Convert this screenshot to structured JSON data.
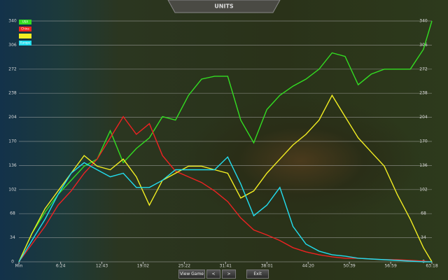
{
  "chart_data": {
    "type": "line",
    "title": "UNITS",
    "x": [
      0,
      2,
      4,
      6,
      8,
      10,
      12,
      14,
      16,
      18,
      20,
      22,
      24,
      26,
      28,
      30,
      32,
      34,
      36,
      38,
      40,
      42,
      44,
      46,
      48,
      50,
      52,
      54,
      56,
      58,
      60,
      62,
      63.3
    ],
    "series": [
      {
        "name": "USA",
        "color": "#33dd22",
        "values": [
          0,
          40,
          70,
          95,
          115,
          135,
          145,
          185,
          140,
          160,
          175,
          205,
          200,
          235,
          258,
          262,
          262,
          200,
          168,
          215,
          235,
          248,
          258,
          272,
          295,
          290,
          250,
          265,
          272,
          272,
          272,
          300,
          340
        ]
      },
      {
        "name": "China",
        "color": "#ee2222",
        "values": [
          0,
          25,
          50,
          80,
          100,
          125,
          145,
          175,
          205,
          180,
          195,
          150,
          128,
          120,
          112,
          100,
          85,
          62,
          45,
          38,
          30,
          20,
          14,
          10,
          7,
          5,
          5,
          4,
          3,
          3,
          2,
          1,
          0
        ]
      },
      {
        "color": "#f2ee22",
        "values": [
          0,
          40,
          75,
          100,
          125,
          150,
          135,
          130,
          145,
          120,
          80,
          115,
          125,
          135,
          135,
          130,
          125,
          90,
          100,
          125,
          145,
          165,
          180,
          200,
          235,
          205,
          175,
          155,
          135,
          95,
          60,
          20,
          0
        ]
      },
      {
        "name": "Europe",
        "color": "#22ddee",
        "values": [
          0,
          30,
          60,
          95,
          125,
          140,
          130,
          120,
          125,
          105,
          105,
          115,
          130,
          130,
          130,
          130,
          148,
          110,
          65,
          80,
          105,
          50,
          25,
          15,
          10,
          8,
          5,
          4,
          3,
          2,
          1,
          0,
          0
        ]
      }
    ],
    "xlim": [
      0,
      63.3
    ],
    "xticks": [
      {
        "value": 0,
        "label": "Min"
      },
      {
        "value": 6.4,
        "label": "6:24"
      },
      {
        "value": 12.717,
        "label": "12:43"
      },
      {
        "value": 19.033,
        "label": "19:02"
      },
      {
        "value": 25.367,
        "label": "25:22"
      },
      {
        "value": 31.683,
        "label": "31:41"
      },
      {
        "value": 38.017,
        "label": "38:01"
      },
      {
        "value": 44.333,
        "label": "44:20"
      },
      {
        "value": 50.65,
        "label": "50:39"
      },
      {
        "value": 56.983,
        "label": "56:59"
      },
      {
        "value": 63.3,
        "label": "63:18"
      }
    ],
    "ylim": [
      0,
      340
    ],
    "yticks": [
      0,
      34,
      68,
      102,
      136,
      170,
      204,
      238,
      272,
      306,
      340
    ],
    "grid": true
  },
  "buttons": [
    "View Game",
    "<",
    ">",
    "Exit"
  ]
}
